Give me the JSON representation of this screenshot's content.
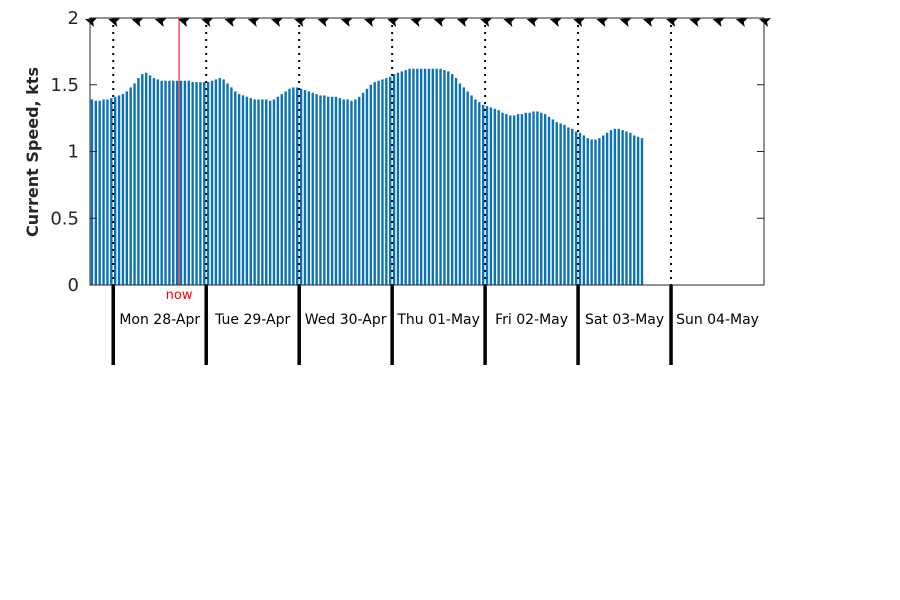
{
  "chart_data": {
    "type": "bar",
    "title": "",
    "xlabel": "",
    "ylabel": "Current Speed, kts",
    "ylim": [
      0,
      2
    ],
    "yticks": [
      "0",
      "0.5",
      "1",
      "1.5",
      "2"
    ],
    "grid": false,
    "legend": "none",
    "x_start": "Sun 27-Apr 18:00",
    "x_end": "Mon 05-May 00:00",
    "x_interval_hours": 1,
    "day_labels": [
      "Mon 28-Apr",
      "Tue 29-Apr",
      "Wed 30-Apr",
      "Thu 01-May",
      "Fri 02-May",
      "Sat 03-May",
      "Sun 04-May"
    ],
    "now_label": "now",
    "now_time": "Mon 28-Apr 17:00",
    "direction_markers": "arrows along top axis",
    "series": [
      {
        "values": [
          1.39,
          1.38,
          1.38,
          1.39,
          1.39,
          1.4,
          1.41,
          1.42,
          1.43,
          1.45,
          1.48,
          1.51,
          1.55,
          1.58,
          1.59,
          1.57,
          1.55,
          1.54,
          1.53,
          1.53,
          1.53,
          1.53,
          1.53,
          1.53,
          1.53,
          1.53,
          1.52,
          1.52,
          1.52,
          1.52,
          1.52,
          1.53,
          1.54,
          1.55,
          1.54,
          1.51,
          1.48,
          1.45,
          1.43,
          1.42,
          1.41,
          1.4,
          1.39,
          1.39,
          1.39,
          1.39,
          1.38,
          1.39,
          1.41,
          1.43,
          1.45,
          1.47,
          1.48,
          1.48,
          1.47,
          1.46,
          1.45,
          1.44,
          1.43,
          1.42,
          1.42,
          1.41,
          1.41,
          1.41,
          1.4,
          1.39,
          1.39,
          1.38,
          1.39,
          1.41,
          1.44,
          1.47,
          1.5,
          1.52,
          1.53,
          1.54,
          1.55,
          1.56,
          1.58,
          1.59,
          1.6,
          1.61,
          1.62,
          1.62,
          1.62,
          1.62,
          1.62,
          1.62,
          1.62,
          1.62,
          1.62,
          1.61,
          1.6,
          1.58,
          1.55,
          1.51,
          1.48,
          1.45,
          1.42,
          1.39,
          1.37,
          1.35,
          1.34,
          1.33,
          1.32,
          1.31,
          1.29,
          1.28,
          1.27,
          1.27,
          1.28,
          1.28,
          1.29,
          1.29,
          1.3,
          1.3,
          1.29,
          1.28,
          1.26,
          1.24,
          1.22,
          1.21,
          1.2,
          1.18,
          1.17,
          1.15,
          1.14,
          1.12,
          1.1,
          1.09,
          1.09,
          1.1,
          1.12,
          1.14,
          1.16,
          1.17,
          1.17,
          1.16,
          1.15,
          1.14,
          1.12,
          1.11,
          1.1
        ]
      }
    ]
  },
  "colors": {
    "bar": "#0b72b5",
    "now_line": "#ff0000",
    "axis": "#262626",
    "day_line": "#000000"
  }
}
